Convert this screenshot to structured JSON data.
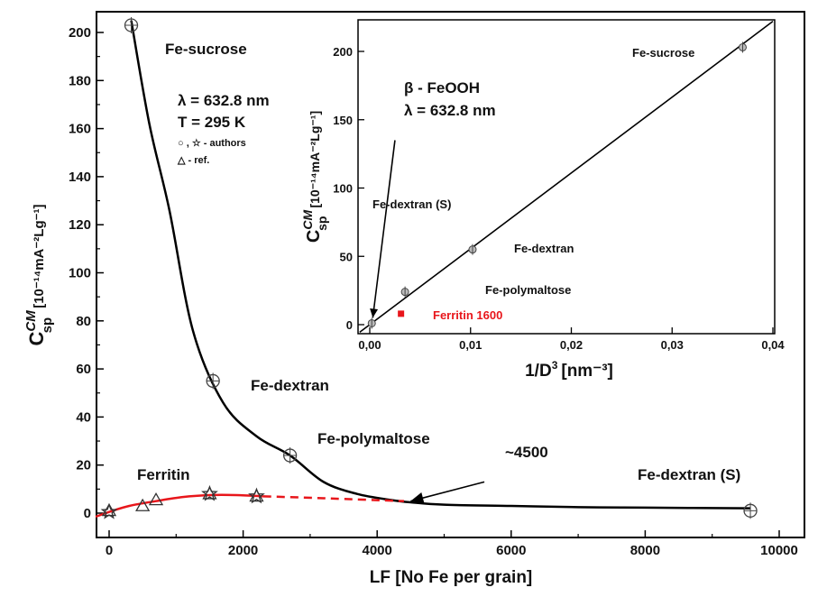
{
  "chart_data": [
    {
      "type": "scatter",
      "xlabel": "LF [No Fe per grain]",
      "ylabel_main": "C",
      "ylabel_sup": "CM",
      "ylabel_sub": "sp",
      "ylabel_units": "[10⁻¹⁴mA⁻²Lg⁻¹]",
      "xlim": [
        0,
        10000
      ],
      "ylim": [
        0,
        200
      ],
      "xticks": [
        0,
        2000,
        4000,
        6000,
        8000,
        10000
      ],
      "yticks": [
        0,
        20,
        40,
        60,
        80,
        100,
        120,
        140,
        160,
        180,
        200
      ],
      "xtick_labels": [
        "0",
        "2000",
        "4000",
        "6000",
        "8000",
        "10000"
      ],
      "ytick_labels": [
        "0",
        "20",
        "40",
        "60",
        "80",
        "100",
        "120",
        "140",
        "160",
        "180",
        "200"
      ],
      "annotations": {
        "lambda": "λ = 632.8 nm",
        "temperature": "T = 295 K",
        "legend_authors": "○ , ☆ - authors",
        "legend_ref": "△ - ref.",
        "fe_sucrose": "Fe-sucrose",
        "fe_dextran": "Fe-dextran",
        "fe_polymaltose": "Fe-polymaltose",
        "ferritin": "Ferritin",
        "fe_dextran_s": "Fe-dextran (S)",
        "crossover": "~4500"
      },
      "circle_points": [
        {
          "x": 330,
          "y": 203
        },
        {
          "x": 1550,
          "y": 55
        },
        {
          "x": 2700,
          "y": 24
        },
        {
          "x": 9570,
          "y": 1
        }
      ],
      "star_points": [
        {
          "x": 0,
          "y": 0.5
        },
        {
          "x": 1500,
          "y": 8
        },
        {
          "x": 2200,
          "y": 7
        }
      ],
      "triangle_points": [
        {
          "x": 0,
          "y": 1
        },
        {
          "x": 500,
          "y": 3
        },
        {
          "x": 700,
          "y": 5.5
        },
        {
          "x": 1500,
          "y": 8
        },
        {
          "x": 2200,
          "y": 7
        }
      ],
      "black_curve": [
        {
          "x": 330,
          "y": 205
        },
        {
          "x": 600,
          "y": 162
        },
        {
          "x": 900,
          "y": 126
        },
        {
          "x": 1250,
          "y": 76
        },
        {
          "x": 1700,
          "y": 46
        },
        {
          "x": 2200,
          "y": 32
        },
        {
          "x": 2700,
          "y": 24
        },
        {
          "x": 3200,
          "y": 13
        },
        {
          "x": 3700,
          "y": 8
        },
        {
          "x": 4200,
          "y": 5.5
        },
        {
          "x": 4500,
          "y": 4.5
        },
        {
          "x": 5000,
          "y": 3.5
        },
        {
          "x": 6000,
          "y": 3
        },
        {
          "x": 7000,
          "y": 2.5
        },
        {
          "x": 8000,
          "y": 2.3
        },
        {
          "x": 9570,
          "y": 2
        }
      ],
      "red_curve_solid": [
        {
          "x": -200,
          "y": -1.5
        },
        {
          "x": 0,
          "y": 0.5
        },
        {
          "x": 300,
          "y": 3
        },
        {
          "x": 700,
          "y": 5
        },
        {
          "x": 1100,
          "y": 6.7
        },
        {
          "x": 1500,
          "y": 7.5
        },
        {
          "x": 1900,
          "y": 7.5
        },
        {
          "x": 2300,
          "y": 7
        }
      ],
      "red_curve_dashed": [
        {
          "x": 2300,
          "y": 7
        },
        {
          "x": 3200,
          "y": 6.2
        },
        {
          "x": 4400,
          "y": 5
        }
      ],
      "arrow": {
        "from": {
          "x": 5600,
          "y": 13
        },
        "to": {
          "x": 4500,
          "y": 5
        }
      }
    },
    {
      "type": "scatter",
      "xlabel_main": "1/D",
      "xlabel_sup": "3",
      "xlabel_units": "[nm⁻³]",
      "ylabel_main": "C",
      "ylabel_sup": "CM",
      "ylabel_sub": "sp",
      "ylabel_units": "[10⁻¹⁴mA⁻²Lg⁻¹]",
      "xlim": [
        -0.001,
        0.04
      ],
      "ylim": [
        -5,
        225
      ],
      "xticks": [
        0,
        0.01,
        0.02,
        0.03,
        0.04
      ],
      "yticks": [
        0,
        50,
        100,
        150,
        200
      ],
      "xtick_labels": [
        "0,00",
        "0,01",
        "0,02",
        "0,03",
        "0,04"
      ],
      "ytick_labels": [
        "0",
        "50",
        "100",
        "150",
        "200"
      ],
      "annotations": {
        "material": "β - FeOOH",
        "lambda": "λ = 632.8 nm",
        "fe_sucrose": "Fe-sucrose",
        "fe_dextran_s": "Fe-dextran (S)",
        "fe_dextran": "Fe-dextran",
        "fe_polymaltose": "Fe-polymaltose",
        "ferritin": "Ferritin 1600"
      },
      "circle_points": [
        {
          "x": 0.0002,
          "y": 1
        },
        {
          "x": 0.0035,
          "y": 24
        },
        {
          "x": 0.0102,
          "y": 55
        },
        {
          "x": 0.037,
          "y": 203
        }
      ],
      "ferritin_point": {
        "x": 0.0031,
        "y": 8
      },
      "fit_line": [
        {
          "x": -0.001,
          "y": -5.5
        },
        {
          "x": 0.04,
          "y": 222
        }
      ],
      "arrow": {
        "from": {
          "x": 0.0025,
          "y": 135
        },
        "to": {
          "x": 0.0003,
          "y": 5
        }
      },
      "colors": {
        "ferritin": "#e8161b"
      }
    }
  ],
  "colors": {
    "black_curve": "#000000",
    "red_curve": "#e8161b"
  }
}
